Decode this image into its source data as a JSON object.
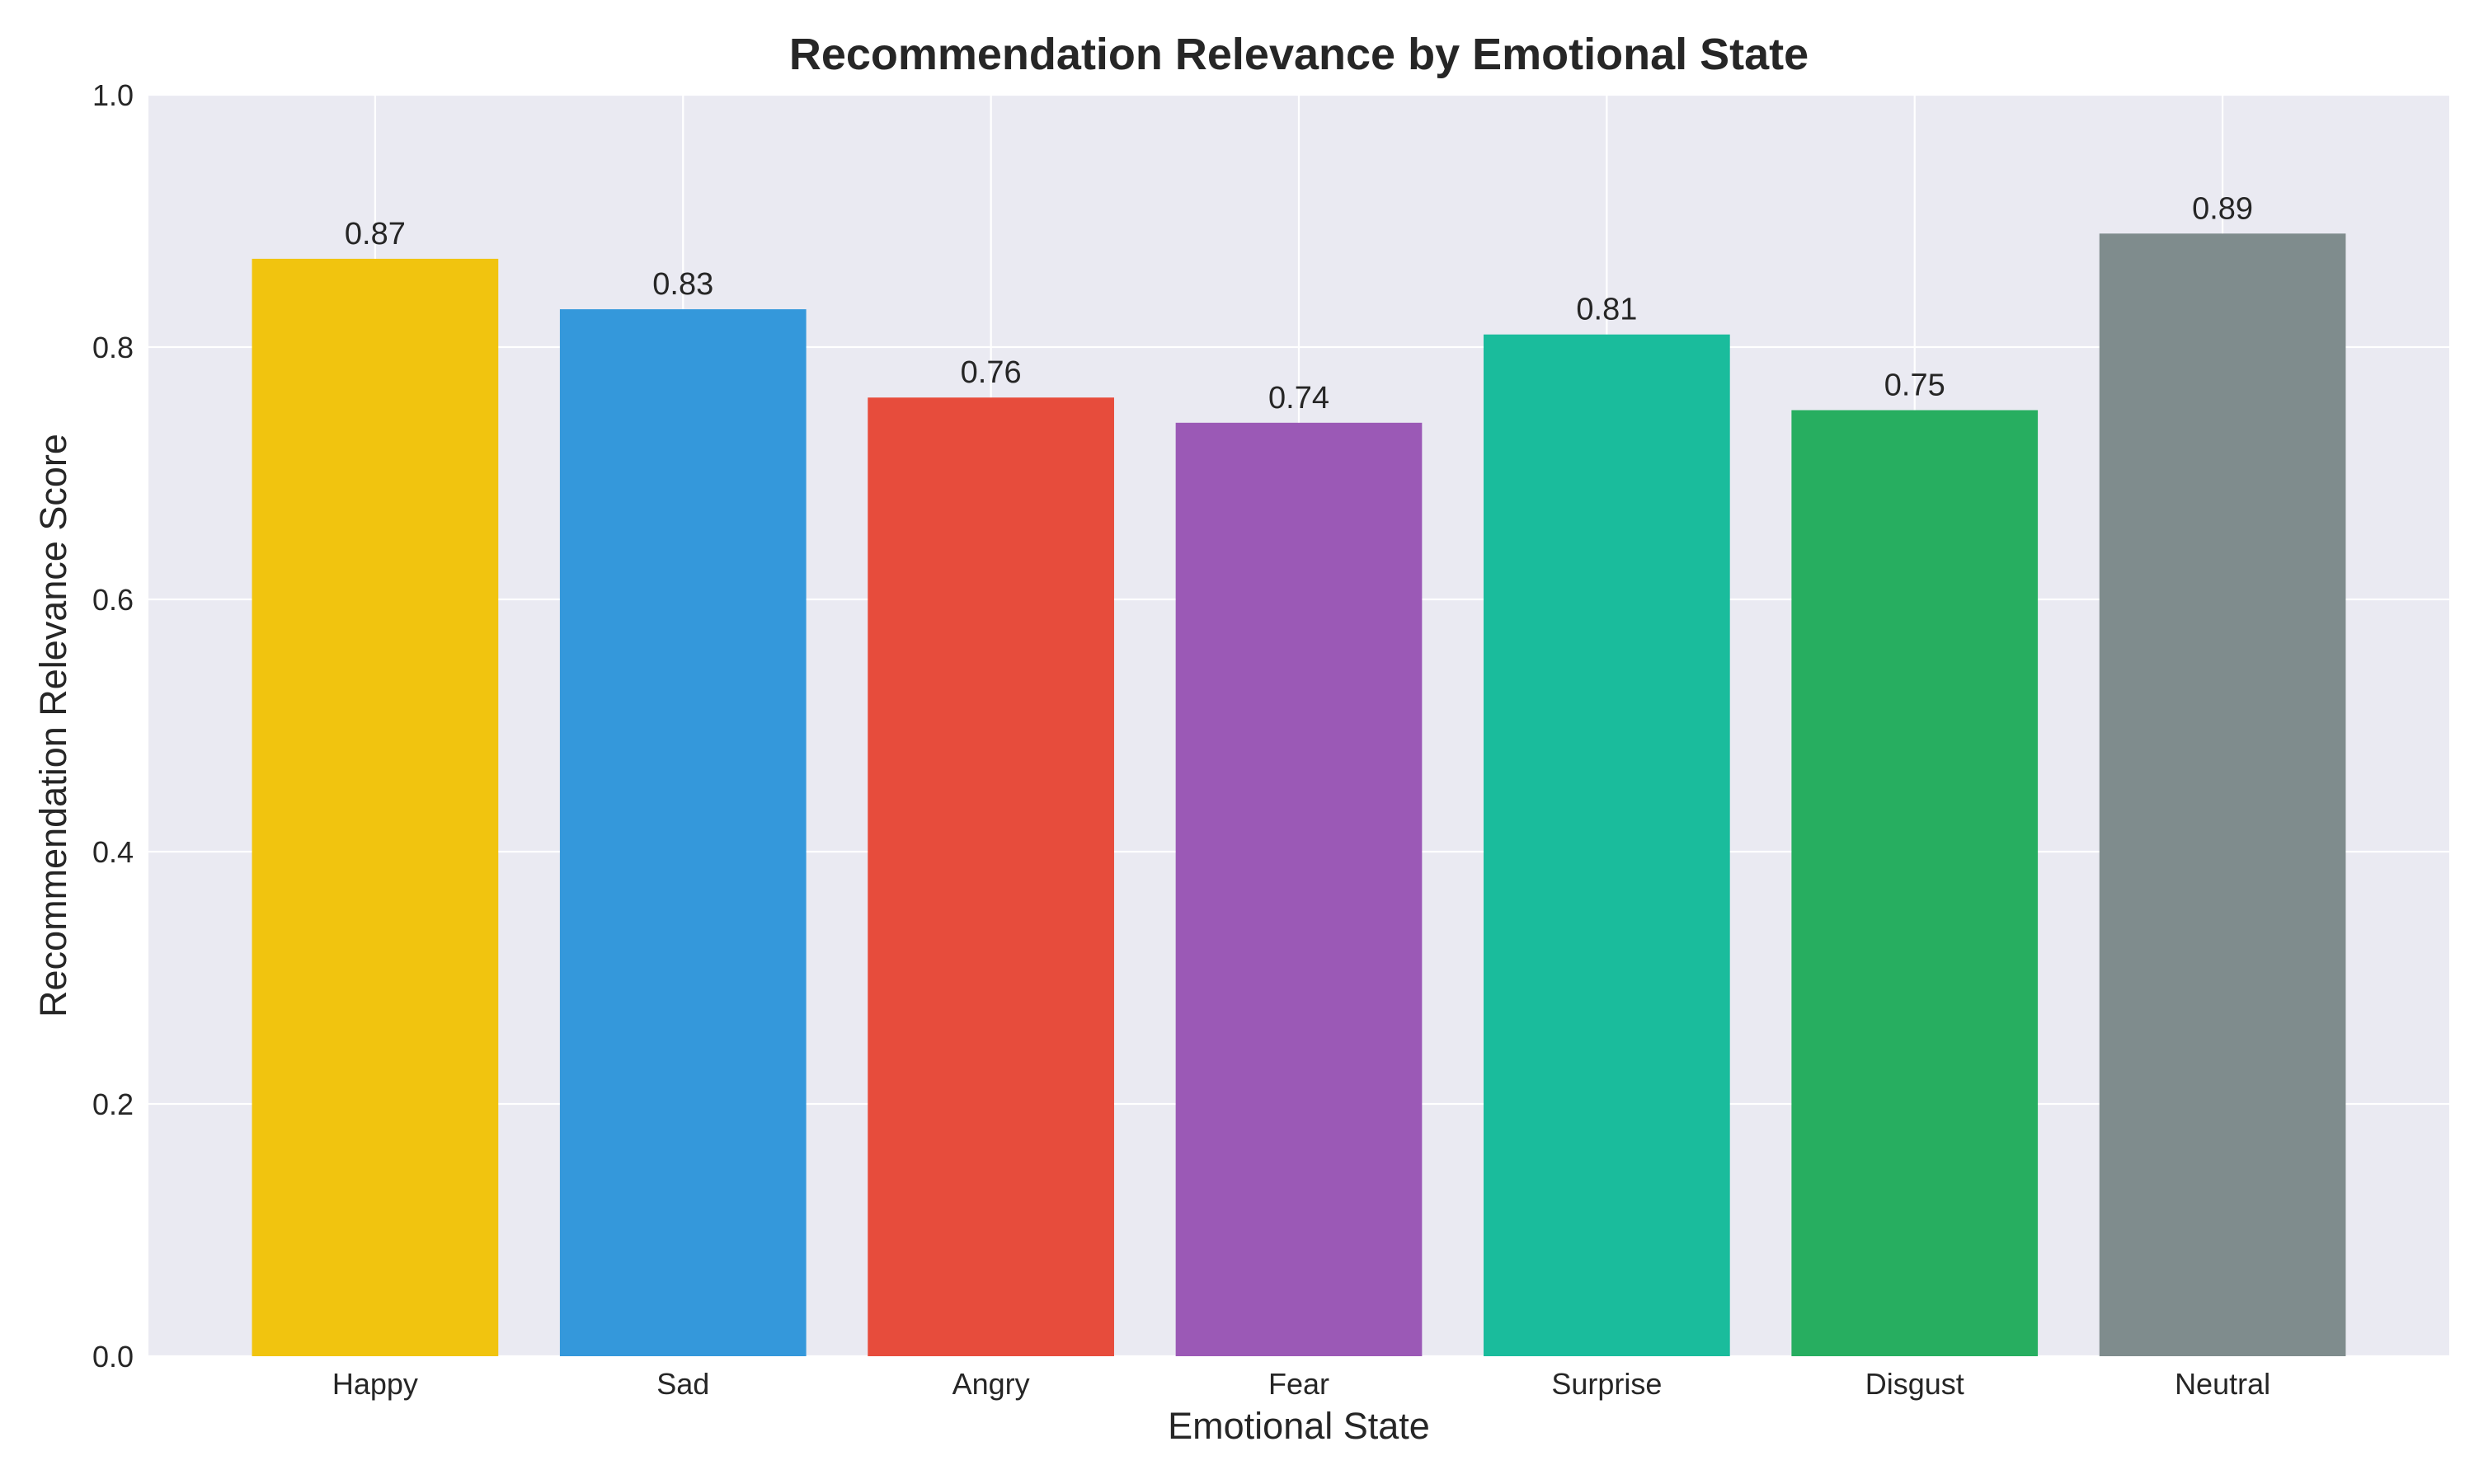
{
  "chart_data": {
    "type": "bar",
    "title": "Recommendation Relevance by Emotional State",
    "xlabel": "Emotional State",
    "ylabel": "Recommendation Relevance Score",
    "categories": [
      "Happy",
      "Sad",
      "Angry",
      "Fear",
      "Surprise",
      "Disgust",
      "Neutral"
    ],
    "values": [
      0.87,
      0.83,
      0.76,
      0.74,
      0.81,
      0.75,
      0.89
    ],
    "value_labels": [
      "0.87",
      "0.83",
      "0.76",
      "0.74",
      "0.81",
      "0.75",
      "0.89"
    ],
    "colors": [
      "#f1c40f",
      "#3498db",
      "#e74c3c",
      "#9b59b6",
      "#1abc9c",
      "#27ae60",
      "#7f8c8d"
    ],
    "ylim": [
      0,
      1.0
    ],
    "yticks": [
      0.0,
      0.2,
      0.4,
      0.6,
      0.8,
      1.0
    ],
    "ytick_labels": [
      "0.0",
      "0.2",
      "0.4",
      "0.6",
      "0.8",
      "1.0"
    ],
    "grid": true,
    "legend": "none"
  },
  "colors": {
    "plot_background": "#eaeaf2",
    "grid": "#ffffff",
    "text": "#262626"
  }
}
